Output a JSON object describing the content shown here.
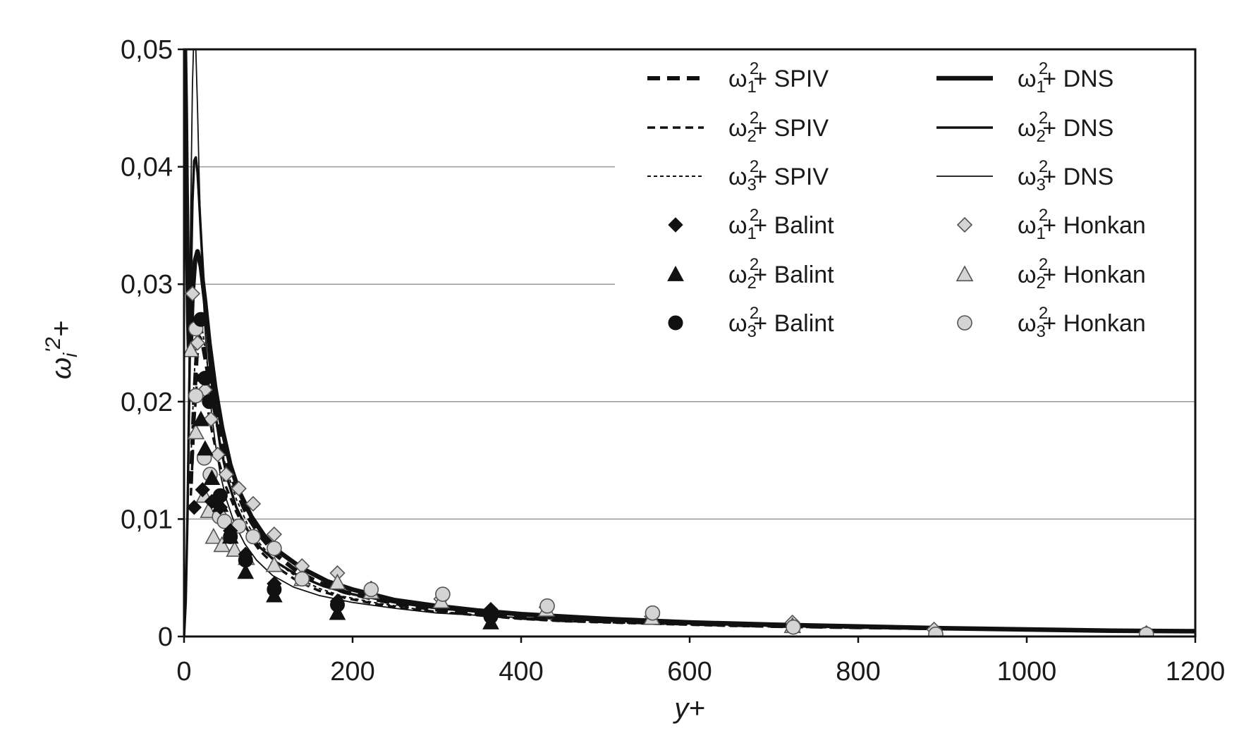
{
  "chart_data": {
    "type": "line",
    "xlabel": "y+",
    "ylabel": "ω_i'2+",
    "ylabel_parts": {
      "base": "ω",
      "sub": "i",
      "sup": "'2",
      "tail": "+"
    },
    "xlim": [
      0,
      1200
    ],
    "ylim": [
      0,
      0.05
    ],
    "x_ticks": [
      0,
      200,
      400,
      600,
      800,
      1000,
      1200
    ],
    "x_tick_labels": [
      "0",
      "200",
      "400",
      "600",
      "800",
      "1000",
      "1200"
    ],
    "y_ticks": [
      0,
      0.01,
      0.02,
      0.03,
      0.04,
      0.05
    ],
    "y_tick_labels": [
      "0",
      "0,01",
      "0,02",
      "0,03",
      "0,04",
      "0,05"
    ],
    "grid": "horizontal",
    "legend_position": "top-right",
    "series": [
      {
        "name": "ω1 2+ SPIV",
        "label": {
          "sym": "ω",
          "sub": "1",
          "sup": "2",
          "rest": "+ SPIV"
        },
        "kind": "line",
        "style": "dash-thick",
        "x": [
          8,
          12,
          15,
          18,
          22,
          27,
          33,
          40,
          50,
          62,
          75,
          90,
          110,
          135,
          160,
          190,
          225,
          260,
          300,
          350,
          400,
          450,
          500,
          550,
          600,
          650,
          700,
          750,
          800,
          850,
          900
        ],
        "y": [
          0.013,
          0.02,
          0.024,
          0.0255,
          0.025,
          0.023,
          0.0205,
          0.018,
          0.015,
          0.0125,
          0.0103,
          0.0086,
          0.0069,
          0.0055,
          0.0046,
          0.0038,
          0.0032,
          0.0027,
          0.0023,
          0.0019,
          0.0016,
          0.0014,
          0.0013,
          0.0012,
          0.0011,
          0.001,
          0.0009,
          0.00085,
          0.0008,
          0.00075,
          0.0007
        ]
      },
      {
        "name": "ω2 2+ SPIV",
        "label": {
          "sym": "ω",
          "sub": "2",
          "sup": "2",
          "rest": "+ SPIV"
        },
        "kind": "line",
        "style": "dash-medium",
        "x": [
          8,
          12,
          15,
          18,
          22,
          27,
          33,
          40,
          50,
          62,
          75,
          90,
          110,
          135,
          160,
          190,
          225,
          260,
          300,
          350,
          400,
          450,
          500,
          550,
          600,
          650,
          700,
          750,
          800,
          850,
          900
        ],
        "y": [
          0.012,
          0.018,
          0.0215,
          0.0225,
          0.0218,
          0.0198,
          0.0175,
          0.0152,
          0.0127,
          0.0106,
          0.0088,
          0.0073,
          0.0059,
          0.0047,
          0.0039,
          0.0033,
          0.0028,
          0.0024,
          0.0021,
          0.0018,
          0.0015,
          0.0013,
          0.0012,
          0.0011,
          0.001,
          0.0009,
          0.00085,
          0.0008,
          0.00075,
          0.0007,
          0.00065
        ]
      },
      {
        "name": "ω3 2+ SPIV",
        "label": {
          "sym": "ω",
          "sub": "3",
          "sup": "2",
          "rest": "+ SPIV"
        },
        "kind": "line",
        "style": "dash-thin",
        "x": [
          8,
          12,
          15,
          18,
          22,
          27,
          33,
          40,
          50,
          62,
          75,
          90,
          110,
          135,
          160,
          190,
          225,
          260,
          300,
          350,
          400,
          450,
          500,
          550,
          600,
          650,
          700,
          750,
          800,
          850,
          900
        ],
        "y": [
          0.015,
          0.022,
          0.026,
          0.027,
          0.026,
          0.0235,
          0.0205,
          0.0175,
          0.0143,
          0.0117,
          0.0096,
          0.0079,
          0.0063,
          0.005,
          0.0041,
          0.0034,
          0.0029,
          0.0025,
          0.0021,
          0.0018,
          0.0015,
          0.0013,
          0.0012,
          0.0011,
          0.001,
          0.0009,
          0.00085,
          0.0008,
          0.00075,
          0.0007,
          0.00065
        ]
      },
      {
        "name": "ω1 2+ DNS",
        "label": {
          "sym": "ω",
          "sub": "1",
          "sup": "2",
          "rest": "+ DNS"
        },
        "kind": "line",
        "style": "solid-thick",
        "x": [
          0,
          1,
          2,
          3,
          4,
          5,
          6,
          8,
          10,
          13,
          16,
          20,
          25,
          30,
          37,
          45,
          55,
          65,
          80,
          95,
          115,
          140,
          170,
          200,
          250,
          300,
          350,
          400,
          500,
          600,
          700,
          800,
          900,
          1000,
          1100,
          1200
        ],
        "y": [
          0.05,
          0.05,
          0.045,
          0.038,
          0.032,
          0.027,
          0.024,
          0.025,
          0.029,
          0.032,
          0.0328,
          0.0315,
          0.0285,
          0.025,
          0.0212,
          0.0178,
          0.0146,
          0.0124,
          0.0102,
          0.0086,
          0.0071,
          0.0058,
          0.0047,
          0.004,
          0.0031,
          0.0026,
          0.0022,
          0.0019,
          0.0015,
          0.0012,
          0.001,
          0.00085,
          0.0007,
          0.0006,
          0.0005,
          0.00045
        ]
      },
      {
        "name": "ω2 2+ DNS",
        "label": {
          "sym": "ω",
          "sub": "2",
          "sup": "2",
          "rest": "+ DNS"
        },
        "kind": "line",
        "style": "solid-medium",
        "x": [
          0,
          2,
          4,
          6,
          8,
          10,
          12,
          14,
          16,
          18,
          21,
          25,
          30,
          36,
          43,
          52,
          62,
          75,
          90,
          110,
          135,
          165,
          200,
          250,
          300,
          350,
          400,
          500,
          600,
          700,
          800,
          900,
          1000,
          1100,
          1200
        ],
        "y": [
          0,
          0.003,
          0.01,
          0.02,
          0.03,
          0.037,
          0.0405,
          0.0408,
          0.0395,
          0.037,
          0.033,
          0.028,
          0.0235,
          0.0195,
          0.0162,
          0.0133,
          0.011,
          0.0091,
          0.0076,
          0.0063,
          0.0052,
          0.0043,
          0.0036,
          0.0029,
          0.0024,
          0.0021,
          0.0018,
          0.0014,
          0.0012,
          0.001,
          0.00085,
          0.0007,
          0.0006,
          0.0005,
          0.00045
        ]
      },
      {
        "name": "ω3 2+ DNS",
        "label": {
          "sym": "ω",
          "sub": "3",
          "sup": "2",
          "rest": "+ DNS"
        },
        "kind": "line",
        "style": "solid-thin",
        "x": [
          0,
          2,
          4,
          6,
          8,
          10,
          12,
          14,
          16,
          18,
          20,
          22,
          25,
          28,
          32,
          37,
          43,
          50,
          60,
          72,
          86,
          105,
          130,
          160,
          200,
          250,
          300,
          350,
          400,
          500,
          600,
          700,
          800,
          900,
          1000,
          1100,
          1200
        ],
        "y": [
          0,
          0.004,
          0.012,
          0.024,
          0.037,
          0.047,
          0.052,
          0.05,
          0.045,
          0.039,
          0.034,
          0.03,
          0.026,
          0.0228,
          0.0195,
          0.0165,
          0.0138,
          0.0117,
          0.0096,
          0.0079,
          0.0065,
          0.0052,
          0.0042,
          0.0035,
          0.0029,
          0.0024,
          0.002,
          0.0018,
          0.0016,
          0.0013,
          0.0011,
          0.0009,
          0.0008,
          0.0007,
          0.0006,
          0.0005,
          0.00045
        ]
      },
      {
        "name": "ω1 2+ Balint",
        "label": {
          "sym": "ω",
          "sub": "1",
          "sup": "2",
          "rest": "+ Balint"
        },
        "kind": "scatter",
        "marker": "diamond",
        "fill": "#111111",
        "x": [
          12,
          22,
          33,
          43,
          55,
          73,
          107,
          182,
          364
        ],
        "y": [
          0.011,
          0.0125,
          0.0115,
          0.011,
          0.009,
          0.007,
          0.0045,
          0.003,
          0.0023
        ]
      },
      {
        "name": "ω2 2+ Balint",
        "label": {
          "sym": "ω",
          "sub": "2",
          "sup": "2",
          "rest": "+ Balint"
        },
        "kind": "scatter",
        "marker": "triangle",
        "fill": "#111111",
        "x": [
          20,
          25,
          33,
          43,
          55,
          73,
          107,
          182,
          364
        ],
        "y": [
          0.0185,
          0.016,
          0.0135,
          0.0112,
          0.0085,
          0.0055,
          0.0035,
          0.002,
          0.0012
        ]
      },
      {
        "name": "ω3 2+ Balint",
        "label": {
          "sym": "ω",
          "sub": "3",
          "sup": "2",
          "rest": "+ Balint"
        },
        "kind": "scatter",
        "marker": "circle",
        "fill": "#111111",
        "x": [
          20,
          25,
          30,
          43,
          55,
          73,
          107,
          182,
          364
        ],
        "y": [
          0.027,
          0.022,
          0.02,
          0.012,
          0.0085,
          0.0065,
          0.004,
          0.0027,
          0.0017
        ]
      },
      {
        "name": "ω1 2+ Honkan",
        "label": {
          "sym": "ω",
          "sub": "1",
          "sup": "2",
          "rest": "+  Honkan"
        },
        "kind": "scatter",
        "marker": "diamond",
        "fill": "#d4d4d4",
        "x": [
          10,
          16,
          25,
          32,
          40,
          50,
          65,
          82,
          107,
          140,
          182,
          222,
          305,
          430,
          555,
          722,
          890,
          1142
        ],
        "y": [
          0.0292,
          0.025,
          0.021,
          0.0185,
          0.0155,
          0.0138,
          0.0126,
          0.0113,
          0.0087,
          0.006,
          0.0054,
          0.0041,
          0.0032,
          0.0025,
          0.0017,
          0.0012,
          0.0006,
          0.0003
        ]
      },
      {
        "name": "ω2 2+ Honkan",
        "label": {
          "sym": "ω",
          "sub": "2",
          "sup": "2",
          "rest": "+  Honkan"
        },
        "kind": "scatter",
        "marker": "triangle",
        "fill": "#d4d4d4",
        "x": [
          8,
          14,
          24,
          29,
          35,
          45,
          60,
          74,
          107,
          140,
          182,
          222,
          305,
          430,
          555,
          722,
          890,
          1142
        ],
        "y": [
          0.0244,
          0.0174,
          0.012,
          0.0107,
          0.0085,
          0.0078,
          0.0074,
          0.0067,
          0.0061,
          0.0049,
          0.0046,
          0.0038,
          0.003,
          0.0023,
          0.0016,
          0.0009,
          0.0001,
          0.0001
        ]
      },
      {
        "name": "ω3 2+ Honkan",
        "label": {
          "sym": "ω",
          "sub": "3",
          "sup": "2",
          "rest": "+  Honkan"
        },
        "kind": "scatter",
        "marker": "circle",
        "fill": "#d4d4d4",
        "x": [
          14,
          14,
          24,
          31,
          42,
          48,
          65,
          82,
          107,
          140,
          222,
          307,
          431,
          556,
          723,
          892,
          1142
        ],
        "y": [
          0.0262,
          0.0205,
          0.0152,
          0.0138,
          0.0102,
          0.0098,
          0.0094,
          0.0085,
          0.0075,
          0.0049,
          0.004,
          0.0036,
          0.0026,
          0.002,
          0.0008,
          0.0002,
          0.0002
        ]
      }
    ]
  }
}
